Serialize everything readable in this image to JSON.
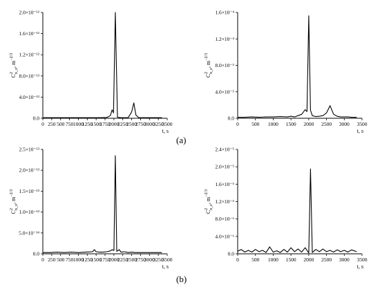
{
  "figure": {
    "labels": [
      "(a)",
      "(b)"
    ]
  },
  "chart_data": [
    {
      "type": "line",
      "panel": "a-left",
      "ylabel": "C²n_o, m⁻²ᐟ³",
      "ylabel_main": "C",
      "ylabel_sup": "2",
      "ylabel_sub": "n_o",
      "ylabel_unit": ", m",
      "ylabel_unit_sup": "−2/3",
      "xlabel": "t, s",
      "xlim": [
        0,
        3500
      ],
      "ylim": [
        0,
        2e-12
      ],
      "xticks": [
        "0",
        "250",
        "500",
        "750",
        "1000",
        "1250",
        "1500",
        "1750",
        "2000",
        "2250",
        "2500",
        "2750",
        "3000",
        "3250",
        "3500"
      ],
      "yticks": [
        "0.0",
        "4.0×10⁻¹³",
        "8.0×10⁻¹³",
        "1.2×10⁻¹²",
        "1.6×10⁻¹²",
        "2.0×10⁻¹²"
      ],
      "x": [
        0,
        200,
        400,
        600,
        800,
        1000,
        1200,
        1400,
        1600,
        1800,
        1900,
        1950,
        1990,
        2040,
        2100,
        2200,
        2300,
        2400,
        2500,
        2560,
        2620,
        2700,
        2800,
        3000,
        3200,
        3350
      ],
      "y": [
        1e-14,
        1e-14,
        1e-14,
        1e-14,
        1e-14,
        1e-14,
        1e-14,
        1e-14,
        1e-14,
        1.5e-14,
        5e-14,
        1.6e-13,
        1e-13,
        2e-12,
        2e-14,
        1e-14,
        1e-14,
        1e-14,
        1.2e-13,
        2.9e-13,
        6e-14,
        1e-14,
        1e-14,
        1e-14,
        1e-14,
        1e-14
      ]
    },
    {
      "type": "line",
      "panel": "a-right",
      "ylabel": "C²n_e, m⁻²ᐟ³",
      "ylabel_main": "C",
      "ylabel_sup": "2",
      "ylabel_sub": "n_e",
      "ylabel_unit": ", m",
      "ylabel_unit_sup": "−2/3",
      "xlabel": "t, s",
      "xlim": [
        0,
        3500
      ],
      "ylim": [
        0,
        0.00016
      ],
      "xticks": [
        "0",
        "500",
        "1000",
        "1500",
        "2000",
        "2500",
        "3000",
        "3500"
      ],
      "yticks": [
        "0.0",
        "4.0×10⁻⁵",
        "8.0×10⁻⁵",
        "1.2×10⁻⁴",
        "1.6×10⁻⁴"
      ],
      "x": [
        0,
        200,
        400,
        600,
        800,
        1000,
        1200,
        1400,
        1500,
        1600,
        1700,
        1800,
        1900,
        1950,
        2000,
        2050,
        2100,
        2200,
        2300,
        2400,
        2500,
        2600,
        2700,
        2800,
        2900,
        3000,
        3100,
        3200,
        3350
      ],
      "y": [
        1.5e-06,
        1.5e-06,
        2e-06,
        1.5e-06,
        2e-06,
        2e-06,
        2.5e-06,
        2e-06,
        3e-06,
        2e-06,
        4e-06,
        6e-06,
        1.3e-05,
        1e-05,
        0.000155,
        1.2e-05,
        4e-06,
        2.5e-06,
        3e-06,
        4e-06,
        8e-06,
        1.9e-05,
        6e-06,
        3e-06,
        2e-06,
        2e-06,
        2e-06,
        1.5e-06,
        1.5e-06
      ]
    },
    {
      "type": "line",
      "panel": "b-left",
      "ylabel": "C²n_o, m⁻²ᐟ³",
      "ylabel_main": "C",
      "ylabel_sup": "2",
      "ylabel_sub": "n_o",
      "ylabel_unit": ", m",
      "ylabel_unit_sup": "−2/3",
      "xlabel": "t, s",
      "xlim": [
        0,
        3500
      ],
      "ylim": [
        0,
        2.5e-13
      ],
      "xticks": [
        "0",
        "250",
        "500",
        "750",
        "1000",
        "1250",
        "1500",
        "1750",
        "2000",
        "2250",
        "2500",
        "2750",
        "3000",
        "3250",
        "3500"
      ],
      "yticks": [
        "0.0",
        "5.0×10⁻¹⁴",
        "1.0×10⁻¹³",
        "1.5×10⁻¹³",
        "2.0×10⁻¹³",
        "2.5×10⁻¹³"
      ],
      "x": [
        0,
        200,
        400,
        600,
        800,
        1000,
        1200,
        1400,
        1450,
        1500,
        1600,
        1700,
        1800,
        1900,
        1950,
        2000,
        2040,
        2080,
        2150,
        2200,
        2300,
        2400,
        2500,
        2600,
        2800,
        3000,
        3200,
        3350
      ],
      "y": [
        3e-15,
        3e-15,
        4e-15,
        3e-15,
        4e-15,
        3e-15,
        4e-15,
        5e-15,
        1e-14,
        5e-15,
        4e-15,
        4e-15,
        5e-15,
        7e-15,
        1e-14,
        8e-15,
        2.35e-13,
        6e-15,
        1e-14,
        4e-15,
        5e-15,
        3e-15,
        4e-15,
        3e-15,
        3e-15,
        3e-15,
        3e-15,
        3e-15
      ]
    },
    {
      "type": "line",
      "panel": "b-right",
      "ylabel": "C²n_e, m⁻²ᐟ³",
      "ylabel_main": "C",
      "ylabel_sup": "2",
      "ylabel_sub": "n_e",
      "ylabel_unit": ", m",
      "ylabel_unit_sup": "−2/3",
      "xlabel": "t, s",
      "xlim": [
        0,
        3500
      ],
      "ylim": [
        0,
        2.4e-05
      ],
      "xticks": [
        "0",
        "500",
        "1000",
        "1500",
        "2000",
        "2500",
        "3000",
        "3500"
      ],
      "yticks": [
        "0.0",
        "4.0×10⁻⁶",
        "8.0×10⁻⁶",
        "1.2×10⁻⁵",
        "1.6×10⁻⁵",
        "2.0×10⁻⁵",
        "2.4×10⁻⁵"
      ],
      "x": [
        0,
        100,
        200,
        300,
        400,
        500,
        600,
        700,
        800,
        900,
        1000,
        1100,
        1200,
        1300,
        1400,
        1500,
        1600,
        1700,
        1800,
        1900,
        2000,
        2050,
        2100,
        2200,
        2300,
        2400,
        2500,
        2600,
        2700,
        2800,
        2900,
        3000,
        3100,
        3200,
        3350
      ],
      "y": [
        6e-07,
        1e-06,
        4e-07,
        8e-07,
        4e-07,
        1e-06,
        5e-07,
        8e-07,
        3e-07,
        1.6e-06,
        4e-07,
        7e-07,
        3e-07,
        1e-06,
        4e-07,
        1.4e-06,
        5e-07,
        1.1e-06,
        4e-07,
        1.4e-06,
        2e-07,
        1.95e-05,
        3e-07,
        1e-06,
        5e-07,
        1.1e-06,
        5e-07,
        8e-07,
        4e-07,
        9e-07,
        5e-07,
        8e-07,
        4e-07,
        9e-07,
        5e-07
      ]
    }
  ]
}
